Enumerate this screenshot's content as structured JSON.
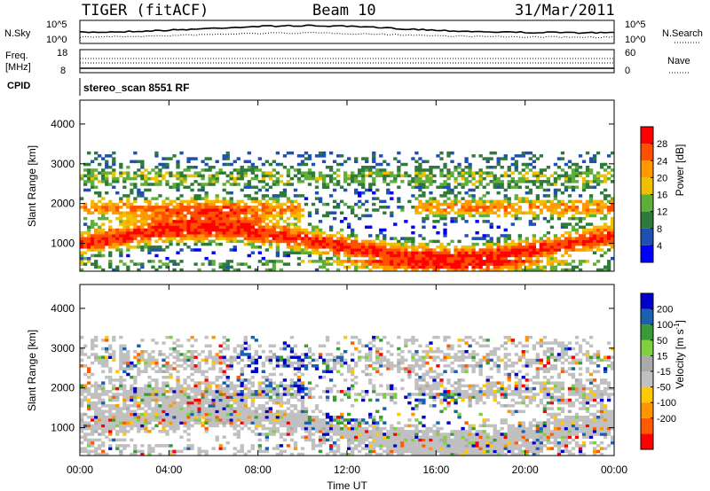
{
  "header": {
    "title": "TIGER (fitACF)",
    "beam": "Beam 10",
    "date": "31/Mar/2011"
  },
  "top_panels": {
    "nsky_label": "N.Sky",
    "nsky_ticks": [
      "10^5",
      "10^0"
    ],
    "nsearch_label": "N.Search",
    "nsearch_ticks": [
      "10^5",
      "10^0"
    ],
    "freq_label_1": "Freq.",
    "freq_label_2": "[MHz]",
    "freq_ticks": [
      "18",
      "8"
    ],
    "nave_label": "Nave",
    "nave_ticks": [
      "60",
      "0"
    ],
    "cpid_label": "CPID",
    "cpid_value": "stereo_scan 8551 RF"
  },
  "colors": {
    "power_scale": [
      "#0000ff",
      "#1f4fb0",
      "#2f7a3a",
      "#5fae3a",
      "#f0c000",
      "#ff9900",
      "#ff5000",
      "#ff0000"
    ],
    "velocity_scale": [
      "#ff0000",
      "#ff5a00",
      "#ff9600",
      "#ffc800",
      "#c0c0c0",
      "#aaaaaa",
      "#7fd040",
      "#3a9a3a",
      "#1a5fb0",
      "#0000c8"
    ],
    "ground_scatter": "#c0c0c0"
  },
  "chart_data": [
    {
      "type": "heatmap",
      "name": "power",
      "ylabel": "Slant Range [km]",
      "yticks": [
        "1000",
        "2000",
        "3000",
        "4000"
      ],
      "ylim": [
        300,
        4600
      ],
      "colorbar_label": "Power [dB]",
      "colorbar_ticks": [
        "28",
        "24",
        "20",
        "16",
        "12",
        "8",
        "4"
      ],
      "colorbar_range": [
        0,
        32
      ]
    },
    {
      "type": "heatmap",
      "name": "velocity",
      "ylabel": "Slant Range [km]",
      "yticks": [
        "1000",
        "2000",
        "3000",
        "4000"
      ],
      "ylim": [
        300,
        4600
      ],
      "colorbar_label": "Velocity [m s^-1]",
      "colorbar_ticks": [
        "200",
        "100",
        "50",
        "15",
        "-15",
        "-50",
        "-100",
        "-200"
      ]
    }
  ],
  "xaxis": {
    "label": "Time UT",
    "ticks": [
      "00:00",
      "04:00",
      "08:00",
      "12:00",
      "16:00",
      "20:00",
      "00:00"
    ]
  }
}
